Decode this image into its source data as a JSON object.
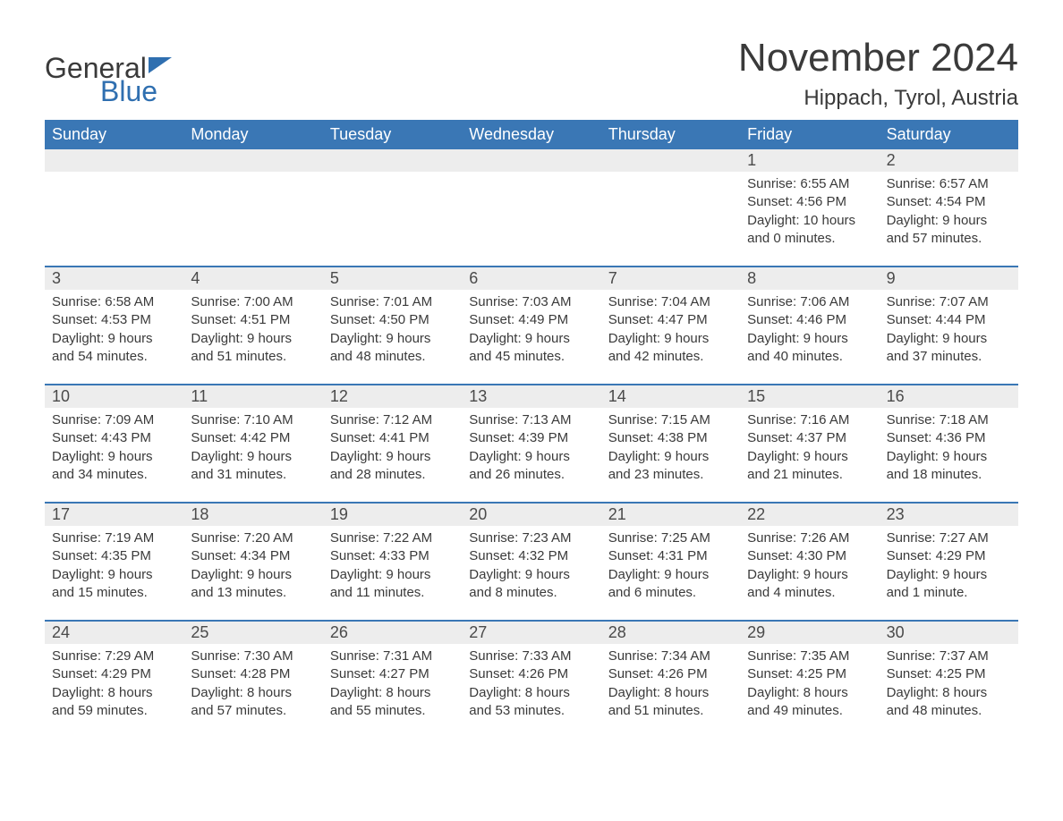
{
  "colors": {
    "header_bg": "#3a77b5",
    "accent": "#2f6fb0",
    "text": "#3a3a3a",
    "daynum_bg": "#ededed",
    "page_bg": "#ffffff"
  },
  "typography": {
    "title_fontsize": 44,
    "location_fontsize": 24,
    "dayheader_fontsize": 18,
    "daynum_fontsize": 18,
    "body_fontsize": 15,
    "font_family": "Arial"
  },
  "logo": {
    "line1": "General",
    "line2": "Blue"
  },
  "title": "November 2024",
  "location": "Hippach, Tyrol, Austria",
  "day_names": [
    "Sunday",
    "Monday",
    "Tuesday",
    "Wednesday",
    "Thursday",
    "Friday",
    "Saturday"
  ],
  "layout": {
    "columns": 7,
    "first_day_column_index": 5,
    "weeks": 5
  },
  "days": [
    {
      "n": 1,
      "sunrise": "6:55 AM",
      "sunset": "4:56 PM",
      "daylight": "10 hours and 0 minutes."
    },
    {
      "n": 2,
      "sunrise": "6:57 AM",
      "sunset": "4:54 PM",
      "daylight": "9 hours and 57 minutes."
    },
    {
      "n": 3,
      "sunrise": "6:58 AM",
      "sunset": "4:53 PM",
      "daylight": "9 hours and 54 minutes."
    },
    {
      "n": 4,
      "sunrise": "7:00 AM",
      "sunset": "4:51 PM",
      "daylight": "9 hours and 51 minutes."
    },
    {
      "n": 5,
      "sunrise": "7:01 AM",
      "sunset": "4:50 PM",
      "daylight": "9 hours and 48 minutes."
    },
    {
      "n": 6,
      "sunrise": "7:03 AM",
      "sunset": "4:49 PM",
      "daylight": "9 hours and 45 minutes."
    },
    {
      "n": 7,
      "sunrise": "7:04 AM",
      "sunset": "4:47 PM",
      "daylight": "9 hours and 42 minutes."
    },
    {
      "n": 8,
      "sunrise": "7:06 AM",
      "sunset": "4:46 PM",
      "daylight": "9 hours and 40 minutes."
    },
    {
      "n": 9,
      "sunrise": "7:07 AM",
      "sunset": "4:44 PM",
      "daylight": "9 hours and 37 minutes."
    },
    {
      "n": 10,
      "sunrise": "7:09 AM",
      "sunset": "4:43 PM",
      "daylight": "9 hours and 34 minutes."
    },
    {
      "n": 11,
      "sunrise": "7:10 AM",
      "sunset": "4:42 PM",
      "daylight": "9 hours and 31 minutes."
    },
    {
      "n": 12,
      "sunrise": "7:12 AM",
      "sunset": "4:41 PM",
      "daylight": "9 hours and 28 minutes."
    },
    {
      "n": 13,
      "sunrise": "7:13 AM",
      "sunset": "4:39 PM",
      "daylight": "9 hours and 26 minutes."
    },
    {
      "n": 14,
      "sunrise": "7:15 AM",
      "sunset": "4:38 PM",
      "daylight": "9 hours and 23 minutes."
    },
    {
      "n": 15,
      "sunrise": "7:16 AM",
      "sunset": "4:37 PM",
      "daylight": "9 hours and 21 minutes."
    },
    {
      "n": 16,
      "sunrise": "7:18 AM",
      "sunset": "4:36 PM",
      "daylight": "9 hours and 18 minutes."
    },
    {
      "n": 17,
      "sunrise": "7:19 AM",
      "sunset": "4:35 PM",
      "daylight": "9 hours and 15 minutes."
    },
    {
      "n": 18,
      "sunrise": "7:20 AM",
      "sunset": "4:34 PM",
      "daylight": "9 hours and 13 minutes."
    },
    {
      "n": 19,
      "sunrise": "7:22 AM",
      "sunset": "4:33 PM",
      "daylight": "9 hours and 11 minutes."
    },
    {
      "n": 20,
      "sunrise": "7:23 AM",
      "sunset": "4:32 PM",
      "daylight": "9 hours and 8 minutes."
    },
    {
      "n": 21,
      "sunrise": "7:25 AM",
      "sunset": "4:31 PM",
      "daylight": "9 hours and 6 minutes."
    },
    {
      "n": 22,
      "sunrise": "7:26 AM",
      "sunset": "4:30 PM",
      "daylight": "9 hours and 4 minutes."
    },
    {
      "n": 23,
      "sunrise": "7:27 AM",
      "sunset": "4:29 PM",
      "daylight": "9 hours and 1 minute."
    },
    {
      "n": 24,
      "sunrise": "7:29 AM",
      "sunset": "4:29 PM",
      "daylight": "8 hours and 59 minutes."
    },
    {
      "n": 25,
      "sunrise": "7:30 AM",
      "sunset": "4:28 PM",
      "daylight": "8 hours and 57 minutes."
    },
    {
      "n": 26,
      "sunrise": "7:31 AM",
      "sunset": "4:27 PM",
      "daylight": "8 hours and 55 minutes."
    },
    {
      "n": 27,
      "sunrise": "7:33 AM",
      "sunset": "4:26 PM",
      "daylight": "8 hours and 53 minutes."
    },
    {
      "n": 28,
      "sunrise": "7:34 AM",
      "sunset": "4:26 PM",
      "daylight": "8 hours and 51 minutes."
    },
    {
      "n": 29,
      "sunrise": "7:35 AM",
      "sunset": "4:25 PM",
      "daylight": "8 hours and 49 minutes."
    },
    {
      "n": 30,
      "sunrise": "7:37 AM",
      "sunset": "4:25 PM",
      "daylight": "8 hours and 48 minutes."
    }
  ],
  "labels": {
    "sunrise": "Sunrise: ",
    "sunset": "Sunset: ",
    "daylight": "Daylight: "
  }
}
